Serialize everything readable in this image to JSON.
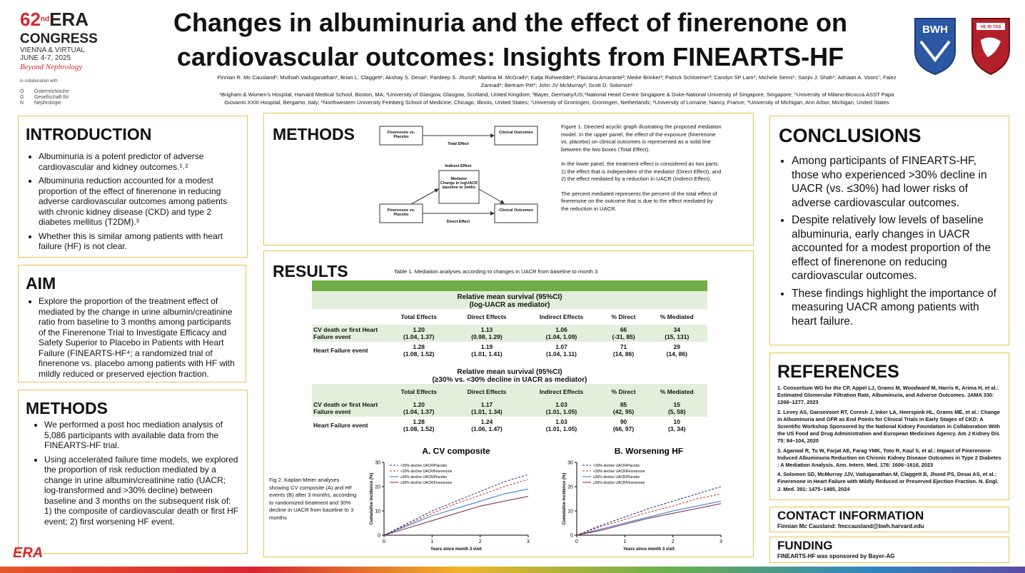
{
  "header": {
    "congress": {
      "edition": "62",
      "edition_suffix": "nd",
      "name": "ERA",
      "line2": "CONGRESS",
      "location": "VIENNA & VIRTUAL",
      "dates": "JUNE 4-7, 2025",
      "tagline": "Beyond Nephrology",
      "collab": "in collaboration with",
      "society_initials": [
        "Ö",
        "G",
        "N"
      ],
      "society_name": "Österreichische Gesellschaft für Nephrologie"
    },
    "title_lines": [
      "Changes in albuminuria and the effect of finerenone on",
      "cardiovascular outcomes: Insights from FINEARTS-HF"
    ],
    "authors": "Finnian R. Mc Causland¹; Muthiah Vaduganathan¹; Brian L. Claggett¹; Akshay S. Desai¹; Pardeep S. Jhund²; Martina M. McGrath¹; Katja Rohwedder³; Flaviana Amarante³; Meike Brinker³; Patrick Schloemer³; Carolyn SP Lam⁴; Michele Senni⁵; Sanjiv J. Shah⁶; Adriaan A. Voors⁷; Faiez Zannad⁸; Bertram Pitt⁹; John JV McMurray²; Scott D. Solomon¹",
    "affiliations": "¹Brigham & Women's Hospital, Harvard Medical School, Boston, MA; ²University of Glasgow, Glasgow, Scotland, United Kingdom; ³Bayer, Germany/US;⁴National Heart Centre Singapore & Duke-National University of Singapore, Singapore; ⁵University of Milano-Bicocca ASST Papa Giovanni XXIII Hospital, Bergamo, Italy; ⁶Northwestern University Feinberg School of Medicine, Chicago, Illinois, United States; ⁷University of Groningen, Groningen, Netherlands; ⁸University of Lorraine, Nancy, France; ⁹University of Michigan, Ann Arbor, Michigan, United States",
    "logos": {
      "bwh": "BWH",
      "harvard": "VE RI TAS"
    },
    "footer_logo": "ERA"
  },
  "introduction": {
    "heading": "INTRODUCTION",
    "bullets": [
      "Albuminuria is a potent predictor of adverse cardiovascular and kidney outcomes.¹˒²",
      "Albuminuria reduction accounted for a modest proportion of the effect of finerenone in reducing adverse cardiovascular outcomes among patients with chronic kidney disease (CKD) and type 2 diabetes mellitus (T2DM).³",
      "Whether this is similar among patients with heart failure (HF) is not clear."
    ]
  },
  "aim": {
    "heading": "AIM",
    "bullets": [
      "Explore the proportion of the treatment effect of mediated by the change in urine albumin/creatinine ratio from baseline to 3 months among participants of the Finerenone Trial to Investigate Efficacy and Safety Superior to Placebo in Patients with Heart Failure (FINEARTS-HF⁴; a randomized trial of finerenone vs. placebo among patients with HF with mildly reduced or preserved ejection fraction."
    ]
  },
  "methods": {
    "heading": "METHODS",
    "bullets": [
      "We performed a post hoc mediation analysis of 5,086 participants with available data from the FINEARTS-HF trial.",
      "Using accelerated failure time models, we explored the proportion of risk reduction mediated by a change in urine albumin/creatinine ratio (UACR; log-transformed and >30% decline) between baseline and 3 months on the subsequent risk of: 1) the composite of cardiovascular death or first HF event; 2) first worsening HF event."
    ]
  },
  "methods_figure": {
    "heading": "METHODS",
    "diagram": {
      "exposure": "Finerenone vs. Placebo",
      "outcome": "Clinical Outcomes",
      "total_effect": "Total Effect",
      "indirect_effect": "Indirect Effect",
      "mediator": "Mediator",
      "mediator_detail": "Change in logUACR baseline to 3mths",
      "direct_effect": "Direct Effect"
    },
    "caption_paragraphs": [
      "Figure 1. Directed acyclic graph illustrating the proposed mediation model.  In the upper panel, the effect of the exposure (finerenone vs. placebo) on clinical outcomes is represented as a solid line between the two boxes (Total Effect).",
      "In the lower panel, the treatment effect is considered as two parts: 1) the effect that is independent of the mediator (Direct Effect), and 2) the effect mediated by a reduction in UACR (Indirect Effect).",
      "The percent mediated represents the percent of the total effect of finerenone on the outcome that is due to the effect mediated by the reduction in UACR."
    ]
  },
  "results": {
    "heading": "RESULTS",
    "table_caption": "Table 1.  Mediation analyses according to changes in UACR from baseline to month 3",
    "table": {
      "columns": [
        "Total Effects",
        "Direct Effects",
        "Indirect Effects",
        "% Direct",
        "% Mediated"
      ],
      "sections": [
        {
          "title_lines": [
            "Relative mean survival (95%CI)",
            "(log-UACR as mediator)"
          ],
          "rows": [
            {
              "label": "CV death or first Heart Failure event",
              "cells": [
                {
                  "estimate": "1.20",
                  "ci": "(1.04, 1.37)"
                },
                {
                  "estimate": "1.13",
                  "ci": "(0.98, 1.29)"
                },
                {
                  "estimate": "1.06",
                  "ci": "(1.04, 1.09)"
                },
                {
                  "estimate": "66",
                  "ci": "(-31, 85)"
                },
                {
                  "estimate": "34",
                  "ci": "(15, 131)"
                }
              ]
            },
            {
              "label": "Heart Failure event",
              "cells": [
                {
                  "estimate": "1.28",
                  "ci": "(1.08, 1.52)"
                },
                {
                  "estimate": "1.19",
                  "ci": "(1.01, 1.41)"
                },
                {
                  "estimate": "1.07",
                  "ci": "(1.04, 1.11)"
                },
                {
                  "estimate": "71",
                  "ci": "(14, 86)"
                },
                {
                  "estimate": "29",
                  "ci": "(14, 86)"
                }
              ]
            }
          ]
        },
        {
          "title_lines": [
            "Relative mean survival (95%CI)",
            "(≥30% vs. <30% decline in UACR as mediator)"
          ],
          "rows": [
            {
              "label": "CV death or first Heart Failure event",
              "cells": [
                {
                  "estimate": "1.20",
                  "ci": "(1.04, 1.37)"
                },
                {
                  "estimate": "1.17",
                  "ci": "(1.01, 1.34)"
                },
                {
                  "estimate": "1.03",
                  "ci": "(1.01, 1.05)"
                },
                {
                  "estimate": "85",
                  "ci": "(42, 95)"
                },
                {
                  "estimate": "15",
                  "ci": "(5, 58)"
                }
              ]
            },
            {
              "label": "Heart Failure event",
              "cells": [
                {
                  "estimate": "1.28",
                  "ci": "(1.08, 1.52)"
                },
                {
                  "estimate": "1.24",
                  "ci": "(1.06, 1.47)"
                },
                {
                  "estimate": "1.03",
                  "ci": "(1.01, 1.05)"
                },
                {
                  "estimate": "90",
                  "ci": "(66, 97)"
                },
                {
                  "estimate": "10",
                  "ci": "(3, 34)"
                }
              ]
            }
          ]
        }
      ]
    },
    "figure_caption": "Fig 2.  Kaplan-Meier analyses showing CV composite (A) and HF events (B) after 3 months, according to randomized treatment and 30% decline in UACR from baseline to 3 months"
  },
  "chart_data": [
    {
      "type": "line",
      "title": "A. CV composite",
      "xlabel": "Years since month 3 visit",
      "ylabel": "Cumulative incidence (%)",
      "x": [
        0,
        0.5,
        1,
        1.5,
        2,
        2.5,
        3
      ],
      "xlim": [
        0,
        3
      ],
      "ylim": [
        0,
        30
      ],
      "xticks": [
        0,
        1,
        2,
        3
      ],
      "yticks": [
        0,
        10,
        20,
        30
      ],
      "legend": "upper left",
      "series": [
        {
          "name": "<30% decline UACR/Placebo",
          "color": "#1f2a6e",
          "style": "dashed",
          "values": [
            0,
            5,
            10,
            14,
            18,
            22,
            25
          ]
        },
        {
          "name": "<30% decline UACR/Finerenone",
          "color": "#c0392b",
          "style": "dashed",
          "values": [
            0,
            4.5,
            9,
            13,
            16.5,
            20,
            23
          ]
        },
        {
          "name": "≥30% decline UACR/Placebo",
          "color": "#2e6fd0",
          "style": "solid",
          "values": [
            0,
            4,
            8,
            11,
            14,
            17,
            19
          ]
        },
        {
          "name": "≥30% decline UACR/Finerenone",
          "color": "#7a1f3d",
          "style": "solid",
          "values": [
            0,
            3,
            6,
            9,
            12,
            14,
            16
          ]
        }
      ]
    },
    {
      "type": "line",
      "title": "B. Worsening HF",
      "xlabel": "Years since month 3 visit",
      "ylabel": "Cumulative incidence (%)",
      "x": [
        0,
        0.5,
        1,
        1.5,
        2,
        2.5,
        3
      ],
      "xlim": [
        0,
        3
      ],
      "ylim": [
        0,
        30
      ],
      "xticks": [
        0,
        1,
        2,
        3
      ],
      "yticks": [
        0,
        10,
        20,
        30
      ],
      "legend": "upper left",
      "series": [
        {
          "name": "<30% decline UACR/Placebo",
          "color": "#1f2a6e",
          "style": "dashed",
          "values": [
            0,
            4,
            7.5,
            11,
            14,
            17,
            20
          ]
        },
        {
          "name": "<30% decline UACR/Finerenone",
          "color": "#c0392b",
          "style": "dashed",
          "values": [
            0,
            3.5,
            6.5,
            9.5,
            12,
            15,
            17
          ]
        },
        {
          "name": "≥30% decline UACR/Placebo",
          "color": "#2e6fd0",
          "style": "solid",
          "values": [
            0,
            2.5,
            5,
            7.5,
            10,
            12,
            14
          ]
        },
        {
          "name": "≥30% decline UACR/Finerenone",
          "color": "#7a1f3d",
          "style": "solid",
          "values": [
            0,
            2,
            4.5,
            7,
            9,
            11,
            13
          ]
        }
      ]
    }
  ],
  "conclusions": {
    "heading": "CONCLUSIONS",
    "bullets": [
      "Among participants of FINEARTS-HF, those who experienced >30% decline in UACR (vs. ≤30%) had lower risks of adverse cardiovascular outcomes.",
      "Despite relatively low levels of baseline albuminuria, early changes in UACR accounted for a modest proportion of the effect of finerenone on reducing cardiovascular outcomes.",
      "These findings highlight the importance of measuring UACR among patients with heart failure."
    ]
  },
  "references": {
    "heading": "REFERENCES",
    "items": [
      "1. Consortium WG for the CP, Appel LJ, Grams M, Woodward M, Harris K, Arima H, et al.: Estimated Glomerular Filtration Rate, Albuminuria, and Adverse Outcomes. JAMA 330: 1266–1277, 2023",
      "2. Levey AS, Gansevoort RT, Coresh J, Inker LA, Heerspink HL, Grams ME, et al.: Change in Albuminuria and GFR as End Points for Clinical Trials in Early Stages of CKD: A Scientific Workshop Sponsored by the National Kidney Foundation in Collaboration With the US Food and Drug Administration and European Medicines Agency. Am J Kidney Dis 75: 84–104, 2020",
      "3. Agarwal R, Tu W, Farjat AE, Farag YMK, Toto R, Kaul S, et al.: Impact of Finerenone-Induced Albuminuria Reduction on Chronic Kidney Disease Outcomes in Type 2 Diabetes : A Mediation Analysis. Ann. Intern. Med. 176: 1606–1616, 2023",
      "4. Solomon SD, McMurray JJV, Vaduganathan M, Claggett B, Jhund PS, Desai AS, et al.: Finerenone in Heart Failure with Mildly Reduced or Preserved Ejection Fraction. N. Engl. J. Med. 391: 1475–1485, 2024"
    ]
  },
  "contact": {
    "heading": "CONTACT INFORMATION",
    "text": "Finnian Mc Causland: fmccausland@bwh.harvard.edu"
  },
  "funding": {
    "heading": "FUNDING",
    "text": "FINEARTS-HF was sponsored by Bayer-AG"
  }
}
